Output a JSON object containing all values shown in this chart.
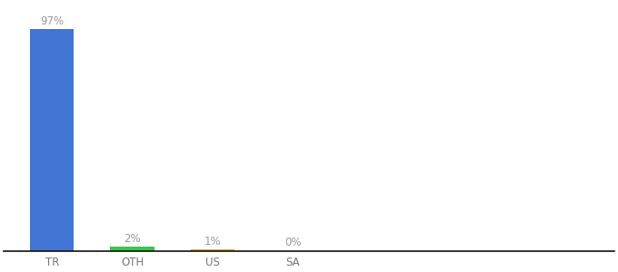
{
  "categories": [
    "TR",
    "OTH",
    "US",
    "SA"
  ],
  "values": [
    97,
    2,
    1,
    0.3
  ],
  "labels": [
    "97%",
    "2%",
    "1%",
    "0%"
  ],
  "bar_colors": [
    "#4375d4",
    "#2ecc40",
    "#f0a500",
    "#4375d4"
  ],
  "background_color": "#ffffff",
  "ylim": [
    0,
    108
  ],
  "bar_width": 0.55,
  "label_fontsize": 8.5,
  "tick_fontsize": 8.5,
  "label_color": "#999999",
  "tick_color": "#777777",
  "spine_color": "#111111"
}
